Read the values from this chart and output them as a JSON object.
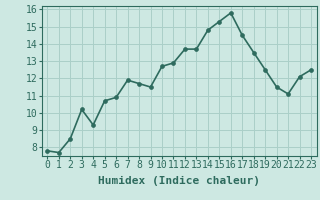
{
  "x": [
    0,
    1,
    2,
    3,
    4,
    5,
    6,
    7,
    8,
    9,
    10,
    11,
    12,
    13,
    14,
    15,
    16,
    17,
    18,
    19,
    20,
    21,
    22,
    23
  ],
  "y": [
    7.8,
    7.7,
    8.5,
    10.2,
    9.3,
    10.7,
    10.9,
    11.9,
    11.7,
    11.5,
    12.7,
    12.9,
    13.7,
    13.7,
    14.8,
    15.3,
    15.8,
    14.5,
    13.5,
    12.5,
    11.5,
    11.1,
    12.1,
    12.5
  ],
  "xlabel": "Humidex (Indice chaleur)",
  "ylim": [
    7.5,
    16.2
  ],
  "xlim": [
    -0.5,
    23.5
  ],
  "yticks": [
    8,
    9,
    10,
    11,
    12,
    13,
    14,
    15,
    16
  ],
  "xticks": [
    0,
    1,
    2,
    3,
    4,
    5,
    6,
    7,
    8,
    9,
    10,
    11,
    12,
    13,
    14,
    15,
    16,
    17,
    18,
    19,
    20,
    21,
    22,
    23
  ],
  "line_color": "#2e6b5e",
  "marker_color": "#2e6b5e",
  "bg_color": "#cde8e2",
  "grid_color": "#aacfc8",
  "fig_bg": "#cde8e2",
  "xlabel_fontsize": 8,
  "tick_fontsize": 7,
  "line_width": 1.2,
  "marker_size": 2.8
}
